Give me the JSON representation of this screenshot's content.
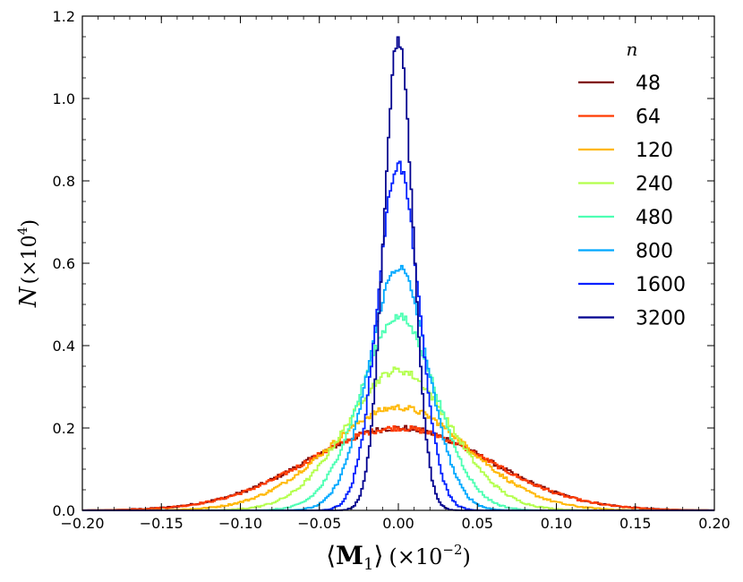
{
  "chart_data": {
    "type": "line",
    "xlabel_parts": {
      "open": "⟨",
      "bold": "M",
      "sub": "1",
      "close": "⟩",
      "unit_pre": "(×10",
      "unit_exp": "−2",
      "unit_post": ")"
    },
    "ylabel_parts": {
      "main": "N",
      "unit_pre": "(×10",
      "unit_exp": "4",
      "unit_post": ")"
    },
    "xlim": [
      -0.2,
      0.2
    ],
    "ylim": [
      0.0,
      1.2
    ],
    "x_ticks": [
      -0.2,
      -0.15,
      -0.1,
      -0.05,
      0.0,
      0.05,
      0.1,
      0.15,
      0.2
    ],
    "x_tick_labels": [
      "−0.20",
      "−0.15",
      "−0.10",
      "−0.05",
      "0.00",
      "0.05",
      "0.10",
      "0.15",
      "0.20"
    ],
    "y_ticks": [
      0.0,
      0.2,
      0.4,
      0.6,
      0.8,
      1.0,
      1.2
    ],
    "y_tick_labels": [
      "0.0",
      "0.2",
      "0.4",
      "0.6",
      "0.8",
      "1.0",
      "1.2"
    ],
    "grid": false,
    "legend": {
      "title": "n",
      "placement": "top-right"
    },
    "series": [
      {
        "name": "48",
        "color": "#7f0000",
        "peak": 0.2,
        "sigma": 0.057,
        "x": [
          -0.18,
          -0.15,
          -0.12,
          -0.1,
          -0.08,
          -0.06,
          -0.04,
          -0.02,
          0.0,
          0.02,
          0.04,
          0.06,
          0.08,
          0.1,
          0.12,
          0.15,
          0.18
        ],
        "y": [
          0.01,
          0.031,
          0.064,
          0.086,
          0.114,
          0.145,
          0.176,
          0.195,
          0.2,
          0.191,
          0.175,
          0.147,
          0.114,
          0.087,
          0.06,
          0.032,
          0.012
        ]
      },
      {
        "name": "64",
        "color": "#ff3a00",
        "peak": 0.2,
        "sigma": 0.0565,
        "x": [
          -0.18,
          -0.15,
          -0.12,
          -0.1,
          -0.08,
          -0.06,
          -0.04,
          -0.02,
          0.0,
          0.02,
          0.04,
          0.06,
          0.08,
          0.1,
          0.12,
          0.15,
          0.18
        ],
        "y": [
          0.01,
          0.03,
          0.062,
          0.085,
          0.114,
          0.146,
          0.177,
          0.196,
          0.2,
          0.192,
          0.176,
          0.148,
          0.114,
          0.086,
          0.059,
          0.031,
          0.011
        ]
      },
      {
        "name": "120",
        "color": "#ffb700",
        "peak": 0.25,
        "sigma": 0.0445,
        "x": [
          -0.18,
          -0.15,
          -0.12,
          -0.1,
          -0.08,
          -0.06,
          -0.04,
          -0.02,
          0.0,
          0.02,
          0.04,
          0.06,
          0.08,
          0.1,
          0.12,
          0.15,
          0.18
        ],
        "y": [
          0.001,
          0.009,
          0.03,
          0.06,
          0.1,
          0.15,
          0.2,
          0.237,
          0.25,
          0.24,
          0.2,
          0.15,
          0.1,
          0.06,
          0.03,
          0.009,
          0.001
        ]
      },
      {
        "name": "240",
        "color": "#b3ff4c",
        "peak": 0.34,
        "sigma": 0.033,
        "x": [
          -0.15,
          -0.12,
          -0.1,
          -0.08,
          -0.06,
          -0.04,
          -0.02,
          0.0,
          0.02,
          0.04,
          0.06,
          0.08,
          0.1,
          0.12,
          0.15
        ],
        "y": [
          0.0,
          0.005,
          0.035,
          0.07,
          0.13,
          0.22,
          0.3,
          0.34,
          0.3,
          0.22,
          0.13,
          0.07,
          0.035,
          0.005,
          0.0
        ]
      },
      {
        "name": "480",
        "color": "#4dffb3",
        "peak": 0.47,
        "sigma": 0.024,
        "x": [
          -0.12,
          -0.1,
          -0.08,
          -0.06,
          -0.04,
          -0.02,
          0.0,
          0.02,
          0.04,
          0.06,
          0.08,
          0.1,
          0.12
        ],
        "y": [
          0.0,
          0.005,
          0.02,
          0.08,
          0.2,
          0.4,
          0.47,
          0.4,
          0.2,
          0.08,
          0.02,
          0.005,
          0.0
        ]
      },
      {
        "name": "800",
        "color": "#00a8ff",
        "peak": 0.59,
        "sigma": 0.0185,
        "x": [
          -0.1,
          -0.08,
          -0.06,
          -0.04,
          -0.02,
          0.0,
          0.02,
          0.04,
          0.06,
          0.08,
          0.1
        ],
        "y": [
          0.0,
          0.005,
          0.03,
          0.17,
          0.44,
          0.59,
          0.44,
          0.17,
          0.03,
          0.005,
          0.0
        ]
      },
      {
        "name": "1600",
        "color": "#0020ff",
        "peak": 0.84,
        "sigma": 0.013,
        "x": [
          -0.08,
          -0.06,
          -0.04,
          -0.02,
          0.0,
          0.02,
          0.04,
          0.06,
          0.08
        ],
        "y": [
          0.0,
          0.003,
          0.05,
          0.39,
          0.84,
          0.39,
          0.05,
          0.003,
          0.0
        ]
      },
      {
        "name": "3200",
        "color": "#00008f",
        "peak": 1.145,
        "sigma": 0.0092,
        "x": [
          -0.05,
          -0.04,
          -0.03,
          -0.02,
          -0.01,
          0.0,
          0.01,
          0.02,
          0.03,
          0.04,
          0.05
        ],
        "y": [
          0.0,
          0.0,
          0.005,
          0.11,
          0.63,
          1.145,
          0.63,
          0.11,
          0.005,
          0.0,
          0.0
        ]
      }
    ]
  }
}
